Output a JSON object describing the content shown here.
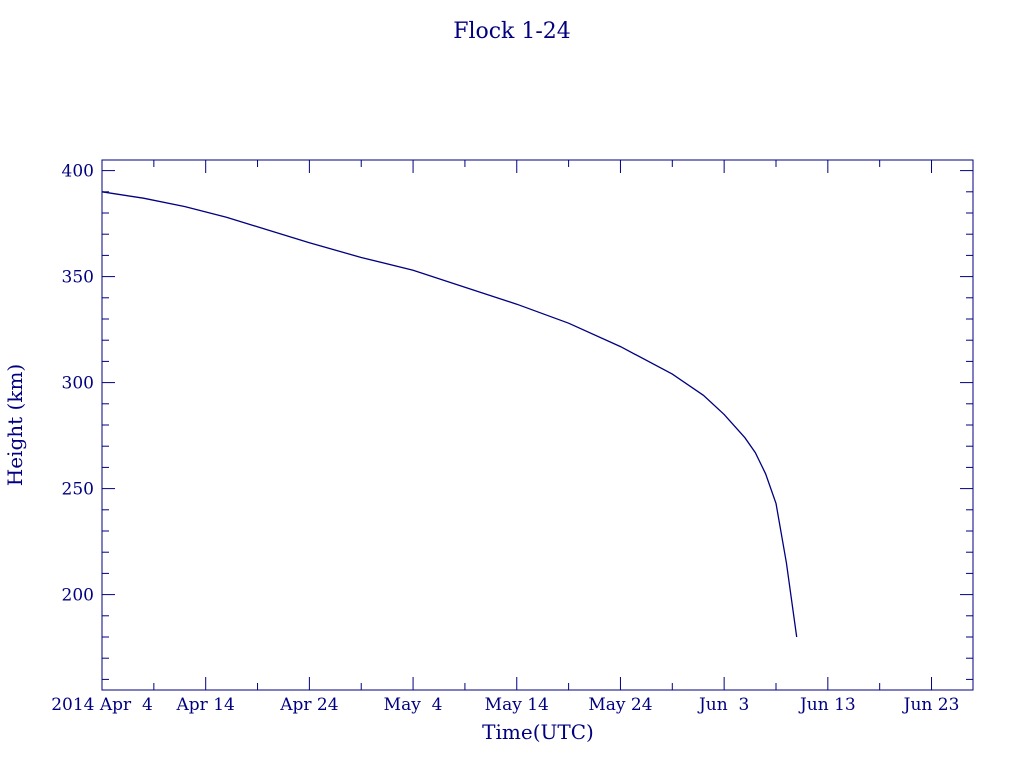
{
  "chart_data": {
    "type": "line",
    "title": "Flock 1-24",
    "xlabel": "Time(UTC)",
    "ylabel": "Height (km)",
    "x_tick_labels": [
      "2014 Apr  4",
      "Apr 14",
      "Apr 24",
      "May  4",
      "May 14",
      "May 24",
      "Jun  3",
      "Jun 13",
      "Jun 23"
    ],
    "y_tick_labels": [
      "200",
      "250",
      "300",
      "350",
      "400"
    ],
    "y_ticks": [
      200,
      250,
      300,
      350,
      400
    ],
    "x_ticks": [
      "2014-04-04",
      "2014-04-14",
      "2014-04-24",
      "2014-05-04",
      "2014-05-14",
      "2014-05-24",
      "2014-06-03",
      "2014-06-13",
      "2014-06-23"
    ],
    "xlim": [
      "2014-04-04",
      "2014-06-27"
    ],
    "ylim": [
      155,
      405
    ],
    "grid": false,
    "color": "#000080",
    "series": [
      {
        "x": [
          "2014-04-04",
          "2014-04-08",
          "2014-04-12",
          "2014-04-16",
          "2014-04-20",
          "2014-04-24",
          "2014-04-29",
          "2014-05-04",
          "2014-05-09",
          "2014-05-14",
          "2014-05-19",
          "2014-05-24",
          "2014-05-29",
          "2014-06-01",
          "2014-06-03",
          "2014-06-05",
          "2014-06-06",
          "2014-06-07",
          "2014-06-08",
          "2014-06-09",
          "2014-06-10"
        ],
        "y": [
          390,
          387,
          383,
          378,
          372,
          366,
          359,
          353,
          345,
          337,
          328,
          317,
          304,
          294,
          285,
          274,
          267,
          257,
          243,
          215,
          180
        ]
      }
    ]
  }
}
